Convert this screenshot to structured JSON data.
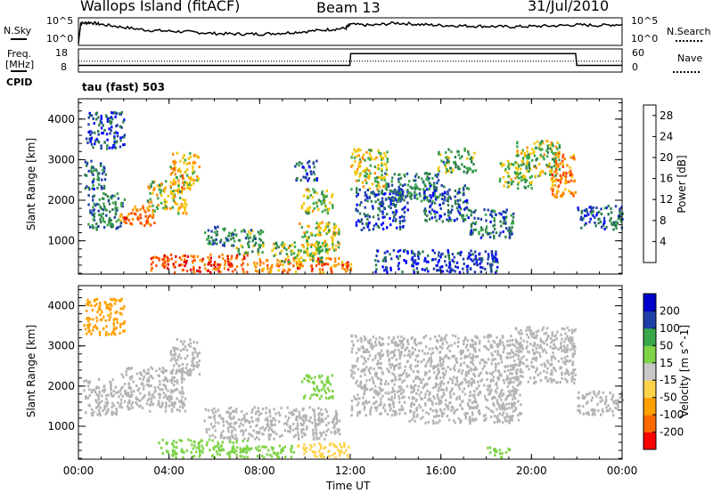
{
  "header": {
    "station": "Wallops Island (fitACF)",
    "beam": "Beam 13",
    "date": "31/Jul/2010"
  },
  "param_panels": {
    "nsky_label": "N.Sky",
    "nsky_ticks": [
      "10^5",
      "10^0"
    ],
    "nsearch_label": "N.Search",
    "nsearch_ticks": [
      "10^5",
      "10^0"
    ],
    "freq_label_1": "Freq.",
    "freq_label_2": "[MHz]",
    "freq_ticks": [
      "18",
      "8"
    ],
    "nave_label": "Nave",
    "nave_ticks": [
      "60",
      "0"
    ],
    "cpid_label": "CPID",
    "cpid_value": "tau (fast) 503"
  },
  "colors": {
    "power_scale": [
      "#0000ff",
      "#1f3fa8",
      "#2e7d4f",
      "#3aa64a",
      "#f5c400",
      "#ff8c00",
      "#ff4d00",
      "#e00000"
    ],
    "velocity_scale": [
      "#ff0000",
      "#ff6a00",
      "#ffa000",
      "#ffd24a",
      "#c8c8c8",
      "#7ed348",
      "#3aa64a",
      "#1f3fa8",
      "#0000cc"
    ],
    "ground_scatter": "#b4b4b4"
  },
  "chart_data": [
    {
      "type": "line",
      "title": "N.Sky / N.Search",
      "xlabel": "",
      "x_ticks": [
        "00:00",
        "04:00",
        "08:00",
        "12:00",
        "16:00",
        "20:00",
        "00:00"
      ],
      "y_ticks": [
        "10^5",
        "10^0"
      ],
      "series": [
        {
          "name": "N.Sky",
          "x_hours": [
            0.0,
            0.1,
            0.5,
            1.0,
            2.0,
            3.0,
            4.0,
            5.0,
            6.0,
            7.0,
            8.0,
            9.0,
            10.0,
            11.0,
            11.8,
            12.0,
            13.0,
            14.0,
            15.0,
            16.0,
            17.0,
            18.0,
            19.0,
            20.0,
            21.0,
            22.0,
            23.0,
            24.0
          ],
          "log_values": [
            0.0,
            4.2,
            4.4,
            4.0,
            3.4,
            2.8,
            2.6,
            2.4,
            2.1,
            2.0,
            2.0,
            2.2,
            2.5,
            2.9,
            3.2,
            4.0,
            3.8,
            4.3,
            4.0,
            3.8,
            3.7,
            3.6,
            3.5,
            3.6,
            3.7,
            3.9,
            3.8,
            4.0
          ]
        }
      ]
    },
    {
      "type": "line",
      "title": "Freq. [MHz] / Nave",
      "x_ticks": [
        "00:00",
        "04:00",
        "08:00",
        "12:00",
        "16:00",
        "20:00",
        "00:00"
      ],
      "y_ticks_left": [
        "18",
        "8"
      ],
      "y_ticks_right": [
        "60",
        "0"
      ],
      "series": [
        {
          "name": "Freq.",
          "x_hours": [
            0.0,
            11.98,
            12.02,
            21.95,
            22.0,
            24.0
          ],
          "values_mhz": [
            10.5,
            10.5,
            16.5,
            16.5,
            10.5,
            10.5
          ]
        },
        {
          "name": "Nave",
          "x_hours": [
            0.0,
            24.0
          ],
          "values": [
            28,
            28
          ]
        }
      ]
    },
    {
      "type": "heatmap",
      "title": "Power [dB]",
      "xlabel": "Time UT",
      "ylabel": "Slant Range [km]",
      "x_ticks": [
        "00:00",
        "04:00",
        "08:00",
        "12:00",
        "16:00",
        "20:00",
        "00:00"
      ],
      "y_ticks": [
        1000,
        2000,
        3000,
        4000
      ],
      "ylim": [
        180,
        4500
      ],
      "xlim_hours": [
        0,
        24
      ],
      "colorbar_ticks": [
        4,
        8,
        12,
        16,
        20,
        24,
        28
      ],
      "colorbar_label": "Power [dB]",
      "colorbar_range": [
        0,
        30
      ],
      "patches": [
        {
          "t0": 0.3,
          "t1": 2.0,
          "r0": 3300,
          "r1": 4200,
          "v": 6
        },
        {
          "t0": 0.2,
          "t1": 1.2,
          "r0": 2300,
          "r1": 3000,
          "v": 8
        },
        {
          "t0": 0.4,
          "t1": 2.0,
          "r0": 1300,
          "r1": 2200,
          "v": 9
        },
        {
          "t0": 1.8,
          "t1": 3.4,
          "r0": 1400,
          "r1": 1900,
          "v": 22
        },
        {
          "t0": 3.0,
          "t1": 4.8,
          "r0": 1700,
          "r1": 2500,
          "v": 16
        },
        {
          "t0": 4.0,
          "t1": 5.3,
          "r0": 2300,
          "r1": 3200,
          "v": 18
        },
        {
          "t0": 5.5,
          "t1": 6.8,
          "r0": 900,
          "r1": 1400,
          "v": 10
        },
        {
          "t0": 6.8,
          "t1": 8.2,
          "r0": 700,
          "r1": 1300,
          "v": 12
        },
        {
          "t0": 3.0,
          "t1": 7.5,
          "r0": 250,
          "r1": 700,
          "v": 24
        },
        {
          "t0": 7.5,
          "t1": 12.0,
          "r0": 250,
          "r1": 600,
          "v": 22
        },
        {
          "t0": 8.5,
          "t1": 11.0,
          "r0": 500,
          "r1": 1000,
          "v": 14
        },
        {
          "t0": 9.7,
          "t1": 11.5,
          "r0": 700,
          "r1": 1500,
          "v": 16
        },
        {
          "t0": 9.8,
          "t1": 11.2,
          "r0": 1700,
          "r1": 2300,
          "v": 14
        },
        {
          "t0": 9.5,
          "t1": 10.5,
          "r0": 2500,
          "r1": 3000,
          "v": 7
        },
        {
          "t0": 12.0,
          "t1": 13.6,
          "r0": 2300,
          "r1": 3300,
          "v": 16
        },
        {
          "t0": 12.2,
          "t1": 14.5,
          "r0": 1300,
          "r1": 2300,
          "v": 6
        },
        {
          "t0": 13.5,
          "t1": 16.0,
          "r0": 2000,
          "r1": 2700,
          "v": 9
        },
        {
          "t0": 15.2,
          "t1": 17.2,
          "r0": 1500,
          "r1": 2400,
          "v": 7
        },
        {
          "t0": 15.8,
          "t1": 17.5,
          "r0": 2700,
          "r1": 3300,
          "v": 12
        },
        {
          "t0": 17.2,
          "t1": 19.2,
          "r0": 1100,
          "r1": 1800,
          "v": 8
        },
        {
          "t0": 18.5,
          "t1": 20.0,
          "r0": 2300,
          "r1": 3000,
          "v": 14
        },
        {
          "t0": 19.2,
          "t1": 21.2,
          "r0": 2600,
          "r1": 3500,
          "v": 15
        },
        {
          "t0": 20.8,
          "t1": 21.9,
          "r0": 2100,
          "r1": 3200,
          "v": 22
        },
        {
          "t0": 22.0,
          "t1": 24.0,
          "r0": 1300,
          "r1": 1900,
          "v": 7
        },
        {
          "t0": 13.0,
          "t1": 18.5,
          "r0": 250,
          "r1": 800,
          "v": 5
        }
      ]
    },
    {
      "type": "heatmap",
      "title": "Velocity [m s^-1]",
      "xlabel": "Time UT",
      "ylabel": "Slant Range [km]",
      "x_ticks": [
        "00:00",
        "04:00",
        "08:00",
        "12:00",
        "16:00",
        "20:00",
        "00:00"
      ],
      "y_ticks": [
        1000,
        2000,
        3000,
        4000
      ],
      "ylim": [
        180,
        4500
      ],
      "xlim_hours": [
        0,
        24
      ],
      "colorbar_ticks": [
        200,
        100,
        50,
        15,
        -15,
        -50,
        -100,
        -200
      ],
      "colorbar_label": "Velocity [m s^-1]",
      "patches": [
        {
          "t0": 0.2,
          "t1": 2.0,
          "r0": 3300,
          "r1": 4200,
          "v": -70
        },
        {
          "t0": 0.2,
          "t1": 1.8,
          "r0": 1300,
          "r1": 2200,
          "v": 0
        },
        {
          "t0": 1.8,
          "t1": 4.8,
          "r0": 1400,
          "r1": 2500,
          "v": 0
        },
        {
          "t0": 4.0,
          "t1": 5.3,
          "r0": 2300,
          "r1": 3200,
          "v": 0
        },
        {
          "t0": 3.5,
          "t1": 7.5,
          "r0": 250,
          "r1": 700,
          "v": 30
        },
        {
          "t0": 7.0,
          "t1": 9.5,
          "r0": 250,
          "r1": 550,
          "v": 40
        },
        {
          "t0": 9.5,
          "t1": 12.0,
          "r0": 250,
          "r1": 600,
          "v": -40
        },
        {
          "t0": 5.5,
          "t1": 11.5,
          "r0": 700,
          "r1": 1500,
          "v": 0
        },
        {
          "t0": 9.8,
          "t1": 11.2,
          "r0": 1700,
          "r1": 2300,
          "v": 30
        },
        {
          "t0": 12.0,
          "t1": 14.5,
          "r0": 1300,
          "r1": 3300,
          "v": 0
        },
        {
          "t0": 14.5,
          "t1": 19.5,
          "r0": 1100,
          "r1": 3300,
          "v": 0
        },
        {
          "t0": 19.2,
          "t1": 21.9,
          "r0": 2100,
          "r1": 3500,
          "v": 0
        },
        {
          "t0": 22.0,
          "t1": 24.0,
          "r0": 1300,
          "r1": 1900,
          "v": 0
        },
        {
          "t0": 18.0,
          "t1": 19.0,
          "r0": 250,
          "r1": 500,
          "v": 40
        }
      ]
    }
  ]
}
